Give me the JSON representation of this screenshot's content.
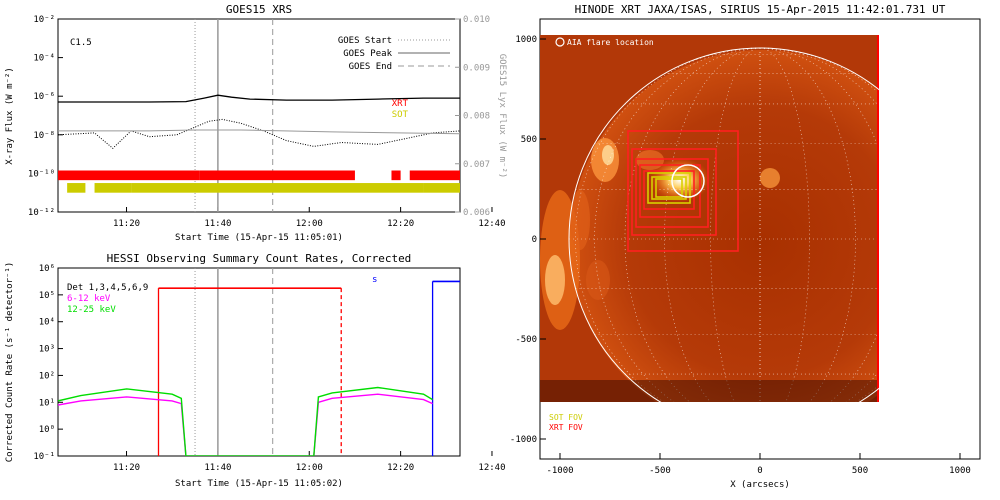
{
  "chart_data": [
    {
      "type": "line",
      "title": "GOES15 XRS",
      "xlabel": "Start Time (15-Apr-15 11:05:01)",
      "ylabel": "X-ray Flux (W m⁻²)",
      "ylabel_right": "GOES15 Lyx Flux (W m⁻²)",
      "x_ticks": [
        "11:20",
        "11:40",
        "12:00",
        "12:20",
        "12:40"
      ],
      "y_ticks": [
        "10⁻¹²",
        "10⁻¹⁰",
        "10⁻⁸",
        "10⁻⁶",
        "10⁻⁴",
        "10⁻²"
      ],
      "y2_ticks": [
        "0.006",
        "0.007",
        "0.008",
        "0.009",
        "0.010"
      ],
      "ylim_log10": [
        -12,
        -2
      ],
      "y2lim": [
        0.006,
        0.01
      ],
      "xlim_min": [
        0,
        88
      ],
      "flare_class": "C1.5",
      "legend": [
        "GOES Start",
        "GOES Peak",
        "GOES End"
      ],
      "legend_placement": "top-right",
      "markers_min": {
        "start": 30,
        "peak": 35,
        "end": 47
      },
      "series": [
        {
          "name": "",
          "color": "#000000",
          "x": [
            0,
            10,
            20,
            28,
            32,
            35,
            38,
            42,
            50,
            60,
            70,
            80,
            88
          ],
          "log10_y": [
            -6.3,
            -6.3,
            -6.3,
            -6.28,
            -6.1,
            -5.95,
            -6.05,
            -6.15,
            -6.2,
            -6.2,
            -6.15,
            -6.1,
            -6.1
          ]
        },
        {
          "name": "",
          "color": "#000000",
          "style": "dotted",
          "x": [
            0,
            8,
            12,
            16,
            20,
            26,
            30,
            33,
            36,
            40,
            45,
            50,
            56,
            62,
            70,
            76,
            82,
            88
          ],
          "log10_y": [
            -8.0,
            -7.9,
            -8.7,
            -7.8,
            -8.1,
            -8.0,
            -7.6,
            -7.3,
            -7.2,
            -7.4,
            -7.8,
            -8.3,
            -8.6,
            -8.4,
            -8.5,
            -8.2,
            -7.9,
            -7.8
          ]
        },
        {
          "name": "",
          "color": "#999999",
          "x": [
            0,
            20,
            30,
            40,
            60,
            88
          ],
          "log10_y": [
            -7.8,
            -7.8,
            -7.75,
            -7.75,
            -7.85,
            -7.95
          ]
        }
      ],
      "coverage_bars": [
        {
          "name": "XRT",
          "color": "#ff0000",
          "segments_min": [
            [
              0,
              31
            ],
            [
              31,
              65
            ],
            [
              73,
              75
            ],
            [
              77,
              88
            ]
          ]
        },
        {
          "name": "SOT",
          "color": "#cccc00",
          "segments_min": [
            [
              2,
              6
            ],
            [
              8,
              16
            ],
            [
              16,
              80
            ],
            [
              80,
              88
            ]
          ]
        }
      ]
    },
    {
      "type": "line",
      "title": "HESSI Observing Summary Count Rates, Corrected",
      "xlabel": "Start Time (15-Apr-15 11:05:02)",
      "ylabel": "Corrected Count Rate (s⁻¹ detector⁻¹)",
      "x_ticks": [
        "11:20",
        "11:40",
        "12:00",
        "12:20",
        "12:40"
      ],
      "y_ticks": [
        "10⁻¹",
        "10⁰",
        "10¹",
        "10²",
        "10³",
        "10⁴",
        "10⁵",
        "10⁶"
      ],
      "ylim_log10": [
        -1,
        6
      ],
      "xlim_min": [
        0,
        88
      ],
      "legend": [
        "Det 1,3,4,5,6,9",
        "6-12 keV",
        "12-25 keV"
      ],
      "legend_placement": "top-left",
      "flag_label_s": "s",
      "markers_min": {
        "start": 30,
        "peak": 35,
        "end": 47
      },
      "series": [
        {
          "name": "6-12 keV",
          "color": "#ff00ff",
          "x": [
            0,
            5,
            15,
            25,
            27,
            28,
            56,
            57,
            60,
            70,
            80,
            82
          ],
          "log10_y": [
            0.9,
            1.05,
            1.2,
            1.05,
            0.95,
            -1,
            -1,
            1.0,
            1.15,
            1.3,
            1.1,
            0.95
          ]
        },
        {
          "name": "12-25 keV",
          "color": "#00dd00",
          "x": [
            0,
            5,
            15,
            25,
            27,
            28,
            56,
            57,
            60,
            70,
            80,
            82
          ],
          "log10_y": [
            1.05,
            1.25,
            1.5,
            1.3,
            1.15,
            -1,
            -1,
            1.2,
            1.35,
            1.55,
            1.3,
            1.1
          ]
        }
      ],
      "flag_steps": [
        {
          "color": "#ff0000",
          "x_min": [
            22,
            62
          ],
          "log10_y": 5.25
        },
        {
          "color": "#0000ff",
          "x_min": [
            82,
            88
          ],
          "log10_y": 5.5
        }
      ]
    },
    {
      "type": "scatter",
      "title": "HINODE XRT JAXA/ISAS, SIRIUS 15-Apr-2015 11:42:01.731 UT",
      "xlabel": "X (arcsecs)",
      "x_ticks": [
        "-1000",
        "-500",
        "0",
        "500",
        "1000"
      ],
      "y_ticks": [
        "-1000",
        "-500",
        "0",
        "500",
        "1000"
      ],
      "xlim": [
        -1100,
        1100
      ],
      "ylim": [
        -1100,
        1100
      ],
      "annotation": "AIA flare location",
      "flare_location": [
        -360,
        290
      ],
      "legend": [
        "SOT FOV",
        "XRT FOV"
      ],
      "legend_colors": [
        "#cccc00",
        "#ff0000"
      ],
      "legend_placement": "bottom-left",
      "solar_radius": 955,
      "image_extent": [
        -1110,
        590,
        -810,
        1100
      ]
    }
  ]
}
